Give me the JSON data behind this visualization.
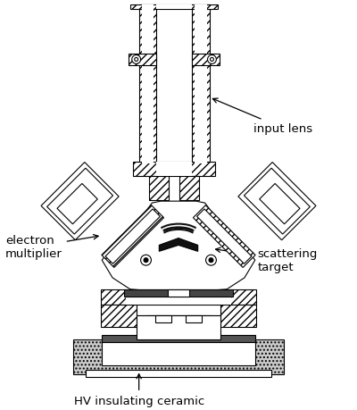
{
  "labels": {
    "input_lens": "input lens",
    "electron_multiplier": "electron\nmultiplier",
    "scattering_target": "scattering\ntarget",
    "hv_ceramic": "HV insulating ceramic"
  },
  "colors": {
    "background": "#ffffff",
    "line": "#000000"
  },
  "figsize": [
    4.0,
    4.6
  ],
  "dpi": 100
}
